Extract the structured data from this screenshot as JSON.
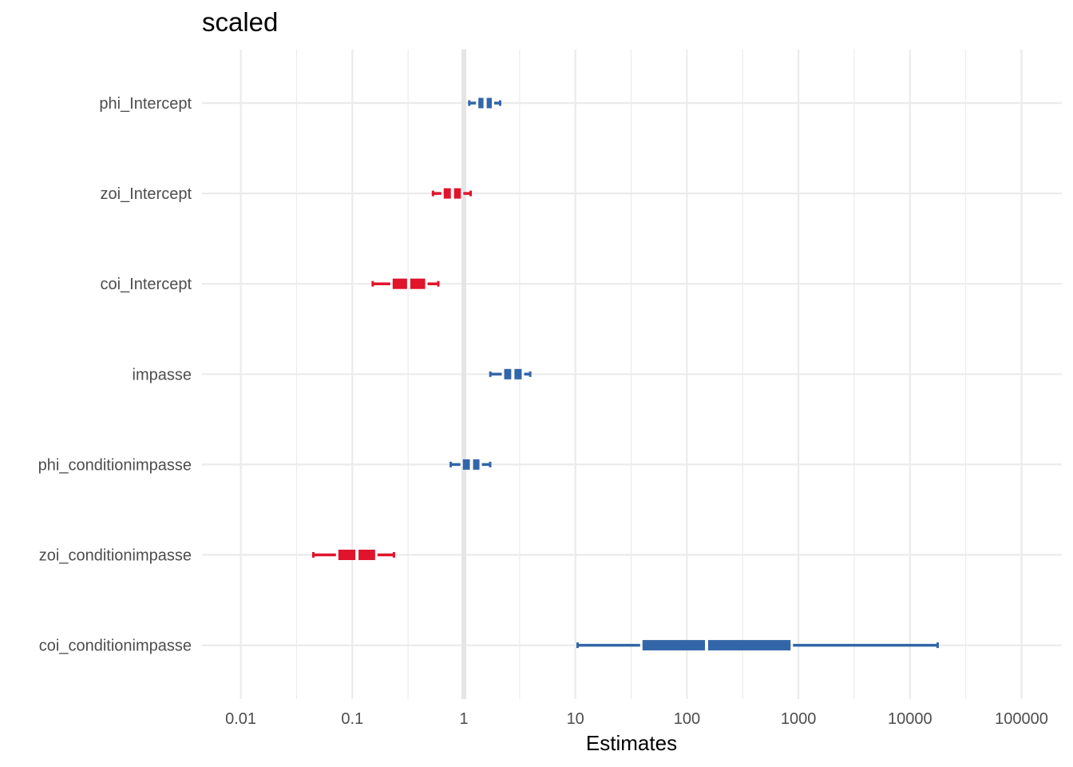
{
  "chart_data": {
    "type": "forest",
    "title": "scaled",
    "xlabel": "Estimates",
    "ylabel": "",
    "x_scale": "log10",
    "xlim": [
      0.005,
      200000
    ],
    "x_ticks": [
      {
        "value": 0.01,
        "label": "0.01"
      },
      {
        "value": 0.1,
        "label": "0.1"
      },
      {
        "value": 1,
        "label": "1"
      },
      {
        "value": 10,
        "label": "10"
      },
      {
        "value": 100,
        "label": "100"
      },
      {
        "value": 1000,
        "label": "1000"
      },
      {
        "value": 10000,
        "label": "10000"
      },
      {
        "value": 100000,
        "label": "100000"
      }
    ],
    "reference_line": 1,
    "grid": true,
    "colors": {
      "positive": "#3366A8",
      "negative": "#E0142B",
      "reference": "#E5E5E5",
      "grid": "#EBEBEB"
    },
    "terms": [
      {
        "label": "phi_Intercept",
        "estimate": 1.55,
        "inner": [
          1.35,
          1.78
        ],
        "outer": [
          1.1,
          2.15
        ],
        "color": "positive"
      },
      {
        "label": "zoi_Intercept",
        "estimate": 0.79,
        "inner": [
          0.66,
          0.94
        ],
        "outer": [
          0.52,
          1.17
        ],
        "color": "negative"
      },
      {
        "label": "coi_Intercept",
        "estimate": 0.32,
        "inner": [
          0.23,
          0.45
        ],
        "outer": [
          0.15,
          0.6
        ],
        "color": "negative"
      },
      {
        "label": "impasse",
        "estimate": 2.75,
        "inner": [
          2.3,
          3.3
        ],
        "outer": [
          1.7,
          4.0
        ],
        "color": "positive"
      },
      {
        "label": "phi_conditionimpasse",
        "estimate": 1.17,
        "inner": [
          0.98,
          1.38
        ],
        "outer": [
          0.75,
          1.75
        ],
        "color": "positive"
      },
      {
        "label": "zoi_conditionimpasse",
        "estimate": 0.11,
        "inner": [
          0.075,
          0.16
        ],
        "outer": [
          0.044,
          0.24
        ],
        "color": "negative"
      },
      {
        "label": "coi_conditionimpasse",
        "estimate": 150,
        "inner": [
          40,
          850
        ],
        "outer": [
          10.3,
          18000
        ],
        "color": "positive"
      }
    ]
  }
}
